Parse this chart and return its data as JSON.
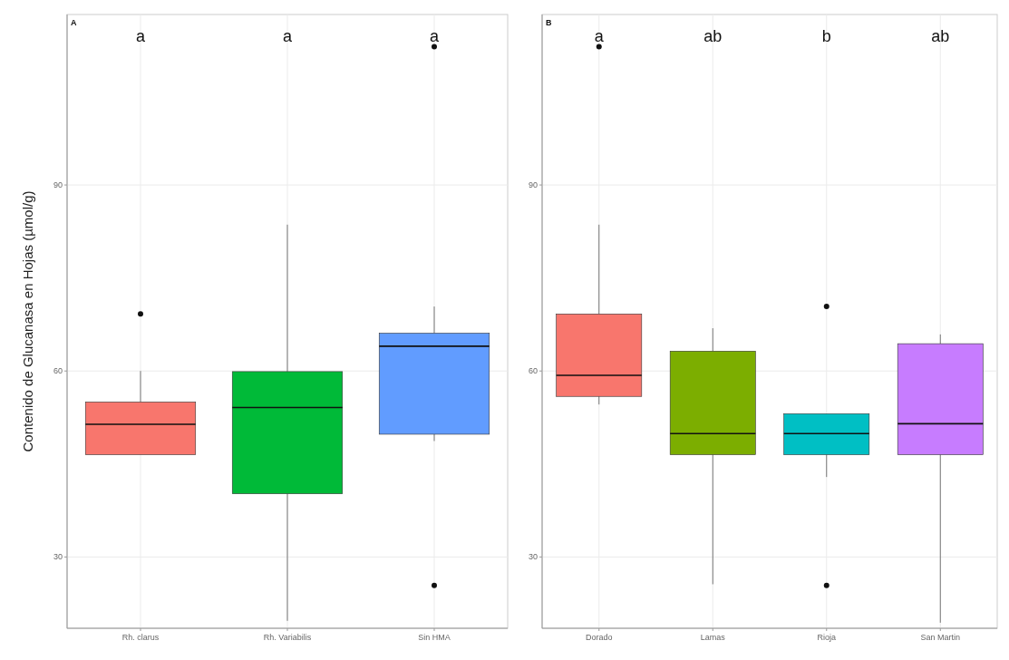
{
  "chart_data": [
    {
      "type": "box",
      "ylabel": "Contenido de Glucanasa en Hojas (µmol/g)",
      "categories": [
        "Rh. clarus",
        "Rh. Variabilis",
        "Sin HMA"
      ],
      "colors": [
        "#f8766d",
        "#00ba38",
        "#619cff"
      ],
      "boxes": [
        {
          "low": 46.5,
          "q1": 46.5,
          "median": 51.4,
          "q3": 55.0,
          "high": 60.0,
          "outliers": [
            69.2
          ]
        },
        {
          "low": 19.7,
          "q1": 40.2,
          "median": 54.1,
          "q3": 59.9,
          "high": 83.6
        },
        {
          "low": 48.7,
          "q1": 49.8,
          "median": 64.0,
          "q3": 66.1,
          "high": 70.4,
          "outliers": [
            112.3,
            25.4
          ]
        }
      ],
      "ylim": [
        18.5,
        117.5
      ],
      "yticks": [
        30,
        60,
        90
      ],
      "grid": true,
      "annotations": [
        "A",
        "a",
        "a",
        "a"
      ]
    },
    {
      "type": "box",
      "categories": [
        "Dorado",
        "Lamas",
        "Rioja",
        "San Martin"
      ],
      "colors": [
        "#f8766d",
        "#7cae00",
        "#00bfc4",
        "#c77cff"
      ],
      "boxes": [
        {
          "low": 54.6,
          "q1": 55.9,
          "median": 59.3,
          "q3": 69.2,
          "high": 83.6,
          "outliers": [
            112.3
          ]
        },
        {
          "low": 25.6,
          "q1": 46.5,
          "median": 49.9,
          "q3": 63.2,
          "high": 66.9
        },
        {
          "low": 42.9,
          "q1": 46.5,
          "median": 49.9,
          "q3": 53.1,
          "high": 53.1,
          "outliers": [
            70.4,
            25.4
          ]
        },
        {
          "low": 19.4,
          "q1": 46.5,
          "median": 51.5,
          "q3": 64.4,
          "high": 65.9
        }
      ],
      "ylim": [
        18.5,
        117.5
      ],
      "yticks": [
        30,
        60,
        90
      ],
      "grid": true,
      "annotations": [
        "B",
        "a",
        "ab",
        "b",
        "ab"
      ]
    }
  ]
}
